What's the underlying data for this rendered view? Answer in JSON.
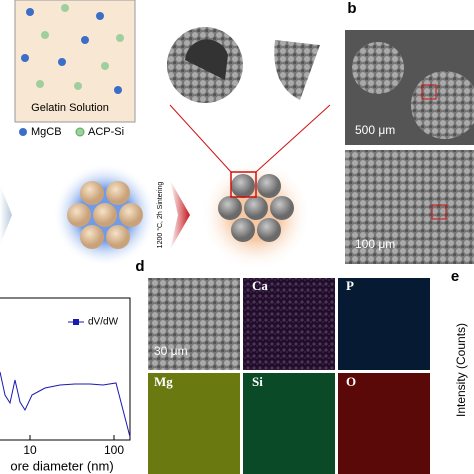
{
  "panel_a": {
    "solution_label": "Gelatin Solution",
    "legend": [
      "MgCB",
      "ACP-Si"
    ],
    "process_label": "1200 °C, 2h Sintering"
  },
  "panel_b": {
    "label": "b",
    "scale_bars": [
      "500 μm",
      "100 μm"
    ]
  },
  "panel_c": {
    "legend": "dV/dW",
    "x_tick_labels": [
      "10",
      "100"
    ],
    "x_axis_label": "ore diameter (nm)"
  },
  "panel_d": {
    "label": "d",
    "scale_bar": "30 μm",
    "maps": [
      "Ca",
      "P",
      "Mg",
      "Si",
      "O"
    ]
  },
  "panel_e": {
    "label": "e",
    "y_axis_label": "Intensity (Counts)"
  }
}
